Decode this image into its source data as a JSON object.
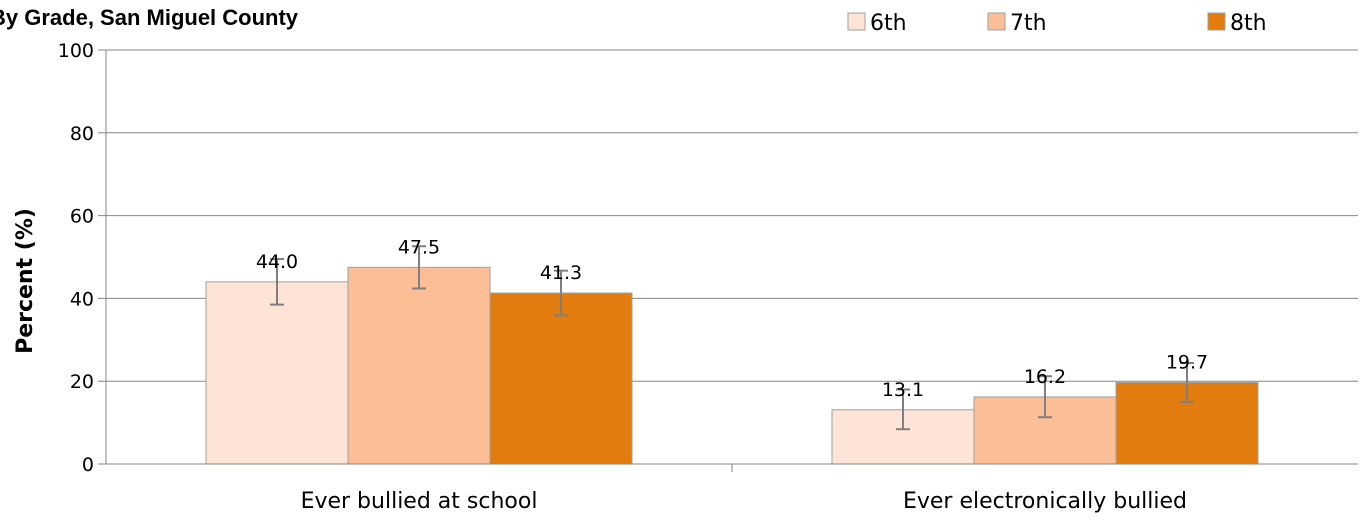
{
  "chart_data": {
    "type": "bar",
    "title": "By Grade, San Miguel County",
    "ylabel": "Percent (%)",
    "xlabel": "",
    "ylim": [
      0,
      100
    ],
    "yticks": [
      0,
      20,
      40,
      60,
      80,
      100
    ],
    "grid": true,
    "legend_position": "top-right",
    "categories": [
      "Ever bullied at school",
      "Ever electronically bullied"
    ],
    "series": [
      {
        "name": "6th",
        "color": "#FDE4D6",
        "values": [
          44.0,
          13.1
        ],
        "error_low": [
          38.5,
          8.4
        ],
        "error_high": [
          49.5,
          18.0
        ]
      },
      {
        "name": "7th",
        "color": "#FBBE96",
        "values": [
          47.5,
          16.2
        ],
        "error_low": [
          42.4,
          11.3
        ],
        "error_high": [
          52.6,
          21.2
        ]
      },
      {
        "name": "8th",
        "color": "#E27C0E",
        "values": [
          41.3,
          19.7
        ],
        "error_low": [
          35.9,
          15.0
        ],
        "error_high": [
          46.7,
          24.4
        ]
      }
    ]
  }
}
